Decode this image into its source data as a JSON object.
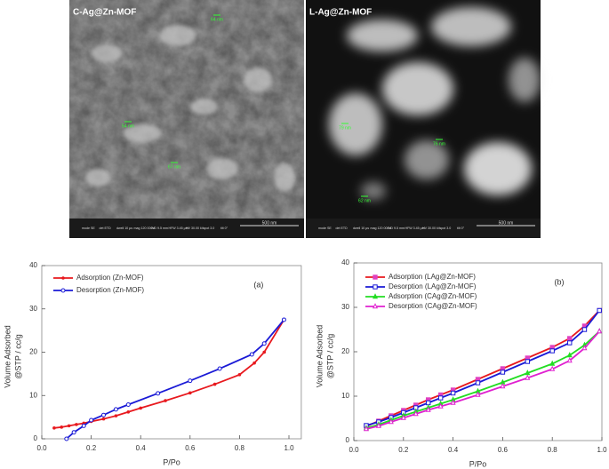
{
  "images": [
    {
      "label": "C-Ag@Zn-MOF",
      "scale_bar": "500 nm",
      "annotations": [
        "64 nm",
        "54 nm",
        "67 nm"
      ],
      "info": [
        "mode SE",
        "det ETD",
        "dwell 10 µs",
        "mag 120 000 x",
        "WD 9.5 mm",
        "HFW 3.45 µm",
        "HV 30.00 kV",
        "spot 3.0",
        "tilt 0°"
      ]
    },
    {
      "label": "L-Ag@Zn-MOF",
      "scale_bar": "500 nm",
      "annotations": [
        "79 nm",
        "76 nm",
        "62 nm"
      ],
      "info": [
        "mode SE",
        "det ETD",
        "dwell 10 µs",
        "mag 120 000 x",
        "WD 9.5 mm",
        "HFW 3.45 µm",
        "HV 30.00 kV",
        "spot 3.0",
        "tilt 0°"
      ]
    }
  ],
  "chart_data": [
    {
      "type": "line",
      "annotation": "(a)",
      "x_label": "P/Po",
      "y_label": [
        "Volume Adsorbed",
        "@STP / cc/g"
      ],
      "xlim": [
        0,
        1.05
      ],
      "xticks": [
        {
          "value": 0,
          "label": "0.0"
        },
        0.2,
        0.4,
        0.6,
        0.8,
        {
          "value": 1,
          "label": "1.0"
        }
      ],
      "ylim": [
        0,
        40
      ],
      "yticks": [
        0,
        10,
        20,
        30,
        40
      ],
      "legend": "upper left",
      "series": [
        {
          "name": "Adsorption (Zn-MOF)",
          "color": "#e8191e",
          "marker": "dot",
          "x": [
            0.05,
            0.08,
            0.11,
            0.14,
            0.17,
            0.2,
            0.25,
            0.3,
            0.35,
            0.4,
            0.5,
            0.6,
            0.7,
            0.8,
            0.86,
            0.9,
            0.98
          ],
          "values": [
            2.5,
            2.7,
            3.0,
            3.3,
            3.6,
            4.0,
            4.6,
            5.3,
            6.2,
            7.1,
            8.8,
            10.6,
            12.6,
            14.8,
            17.5,
            20,
            27.5
          ]
        },
        {
          "name": "Desorption (Zn-MOF)",
          "color": "#1a1ad6",
          "marker": "circle",
          "x": [
            0.1,
            0.13,
            0.17,
            0.2,
            0.25,
            0.3,
            0.35,
            0.47,
            0.6,
            0.72,
            0.85,
            0.9,
            0.98
          ],
          "values": [
            0,
            1.5,
            3,
            4.3,
            5.5,
            6.8,
            7.9,
            10.5,
            13.4,
            16.2,
            19.5,
            22,
            27.5
          ]
        }
      ]
    },
    {
      "type": "line",
      "annotation": "(b)",
      "x_label": "P/Po",
      "y_label": [
        "Volume Adsorbed",
        "@STP / cc/g"
      ],
      "xlim": [
        0,
        1
      ],
      "xticks": [
        {
          "value": 0,
          "label": "0.0"
        },
        0.2,
        0.4,
        0.6,
        0.8,
        {
          "value": 1,
          "label": "1.0"
        }
      ],
      "ylim": [
        0,
        40
      ],
      "yticks": [
        0,
        10,
        20,
        30,
        40
      ],
      "legend": "upper left",
      "series": [
        {
          "name": "Adsorption (LAg@Zn-MOF)",
          "color": "#e8191e",
          "marker_color": "#e040c0",
          "marker": "square-filled",
          "x": [
            0.05,
            0.1,
            0.15,
            0.2,
            0.25,
            0.3,
            0.35,
            0.4,
            0.5,
            0.6,
            0.7,
            0.8,
            0.87,
            0.93,
            0.99
          ],
          "values": [
            3.2,
            4.4,
            5.6,
            6.8,
            8,
            9.2,
            10.3,
            11.4,
            13.8,
            16.2,
            18.6,
            21,
            23,
            25.8,
            29.3
          ]
        },
        {
          "name": "Desorption (LAg@Zn-MOF)",
          "color": "#1a1ad6",
          "marker": "square",
          "x": [
            0.05,
            0.1,
            0.15,
            0.2,
            0.25,
            0.3,
            0.35,
            0.4,
            0.5,
            0.6,
            0.7,
            0.8,
            0.87,
            0.93,
            0.99
          ],
          "values": [
            3.4,
            4.2,
            5.2,
            6.3,
            7.4,
            8.5,
            9.6,
            10.7,
            13,
            15.4,
            17.8,
            20.2,
            22,
            25,
            29.3
          ]
        },
        {
          "name": "Adsorption (CAg@Zn-MOF)",
          "color": "#22dd22",
          "marker": "triangle-filled",
          "x": [
            0.05,
            0.1,
            0.15,
            0.2,
            0.25,
            0.3,
            0.35,
            0.4,
            0.5,
            0.6,
            0.7,
            0.8,
            0.87,
            0.93,
            0.99
          ],
          "values": [
            2.8,
            3.6,
            4.6,
            5.6,
            6.5,
            7.4,
            8.3,
            9.2,
            11.1,
            13.1,
            15.2,
            17.3,
            19.2,
            21.5,
            24.6
          ]
        },
        {
          "name": "Desorption (CAg@Zn-MOF)",
          "color": "#e020d0",
          "marker": "triangle",
          "x": [
            0.05,
            0.1,
            0.15,
            0.2,
            0.25,
            0.3,
            0.35,
            0.4,
            0.5,
            0.6,
            0.7,
            0.8,
            0.87,
            0.93,
            0.99
          ],
          "values": [
            2.6,
            3.3,
            4.2,
            5.1,
            6,
            6.9,
            7.7,
            8.5,
            10.3,
            12.2,
            14.1,
            16.1,
            18,
            20.8,
            24.6
          ]
        }
      ]
    }
  ]
}
